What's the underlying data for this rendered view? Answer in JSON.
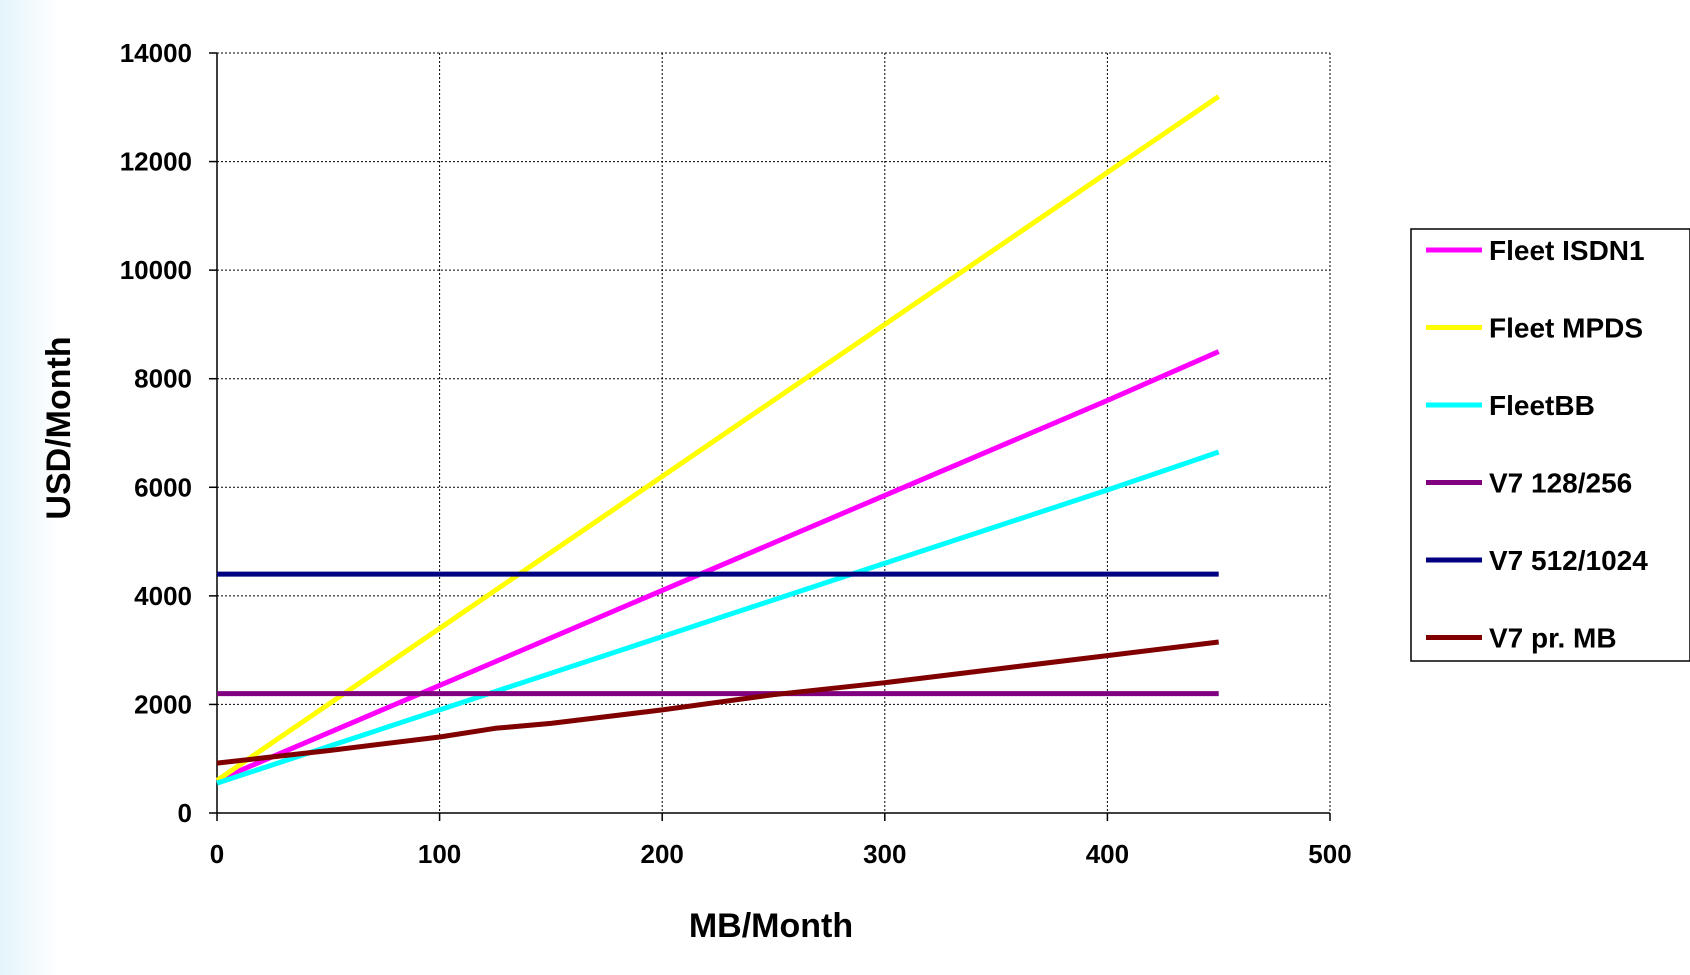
{
  "chart_data": {
    "type": "line",
    "xlabel": "MB/Month",
    "ylabel": "USD/Month",
    "xlim": [
      0,
      500
    ],
    "ylim": [
      0,
      14000
    ],
    "xticks": [
      0,
      100,
      200,
      300,
      400,
      500
    ],
    "yticks": [
      0,
      2000,
      4000,
      6000,
      8000,
      10000,
      12000,
      14000
    ],
    "xtick_labels": [
      "0",
      "100",
      "200",
      "300",
      "400",
      "500"
    ],
    "ytick_labels": [
      "0",
      "2000",
      "4000",
      "6000",
      "8000",
      "10000",
      "12000",
      "14000"
    ],
    "grid": true,
    "legend_position": "right",
    "series": [
      {
        "name": "Fleet ISDN1",
        "color": "#ff00ff",
        "x": [
          0,
          100,
          200,
          300,
          400,
          450
        ],
        "y": [
          600,
          2350,
          4100,
          5850,
          7600,
          8500
        ]
      },
      {
        "name": "Fleet MPDS",
        "color": "#ffff00",
        "x": [
          0,
          100,
          200,
          300,
          400,
          450
        ],
        "y": [
          600,
          3400,
          6200,
          9000,
          11800,
          13200
        ]
      },
      {
        "name": "FleetBB",
        "color": "#00ffff",
        "x": [
          0,
          100,
          200,
          300,
          400,
          450
        ],
        "y": [
          550,
          1900,
          3250,
          4600,
          5950,
          6650
        ]
      },
      {
        "name": "V7 128/256",
        "color": "#800080",
        "x": [
          0,
          450
        ],
        "y": [
          2200,
          2200
        ]
      },
      {
        "name": "V7 512/1024",
        "color": "#000080",
        "x": [
          0,
          450
        ],
        "y": [
          4400,
          4400
        ]
      },
      {
        "name": "V7 pr. MB",
        "color": "#800000",
        "x": [
          0,
          50,
          100,
          125,
          150,
          200,
          250,
          300,
          350,
          400,
          450
        ],
        "y": [
          920,
          1150,
          1400,
          1560,
          1650,
          1900,
          2180,
          2400,
          2650,
          2900,
          3150
        ]
      }
    ]
  }
}
